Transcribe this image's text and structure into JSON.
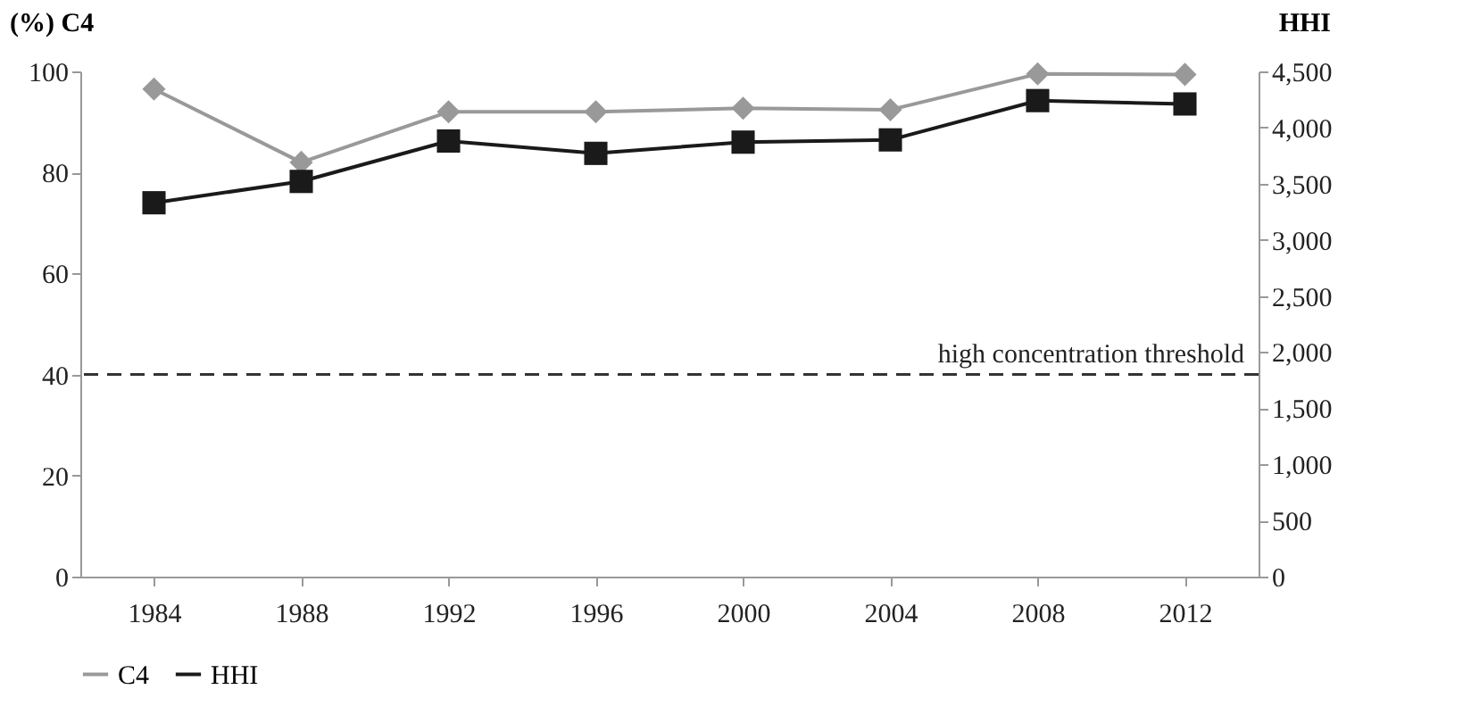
{
  "chart_data": {
    "type": "line",
    "ylabel": "(%) C4",
    "y2label": "HHI",
    "categories": [
      "1984",
      "1988",
      "1992",
      "1996",
      "2000",
      "2004",
      "2008",
      "2012"
    ],
    "series": [
      {
        "name": "C4",
        "color": "#999999",
        "marker": "diamond",
        "values": [
          96.5,
          82,
          92,
          92,
          92.7,
          92.4,
          99.5,
          99.4
        ]
      },
      {
        "name": "HHI",
        "color": "#1a1a1a",
        "marker": "square",
        "axis": "y2",
        "values": [
          3330,
          3520,
          3880,
          3770,
          3870,
          3890,
          4240,
          4210
        ]
      }
    ],
    "ylim": [
      0,
      100
    ],
    "yticks": [
      0,
      20,
      40,
      60,
      80,
      100
    ],
    "y2lim": [
      0,
      4500
    ],
    "y2ticks": [
      {
        "value": 0,
        "label": "0"
      },
      {
        "value": 500,
        "label": "500"
      },
      {
        "value": 1000,
        "label": "1,000"
      },
      {
        "value": 1500,
        "label": "1,500"
      },
      {
        "value": 2000,
        "label": "2,000"
      },
      {
        "value": 2500,
        "label": "2,500"
      },
      {
        "value": 3000,
        "label": "3,000"
      },
      {
        "value": 3500,
        "label": "3,500"
      },
      {
        "value": 4000,
        "label": "4,000"
      },
      {
        "value": 4500,
        "label": "4,500"
      }
    ],
    "ref_lines": [
      {
        "axis": "y",
        "value": 40,
        "label": "high concentration threshold",
        "color": "#333333",
        "line_style": "dashed"
      }
    ],
    "grid": false,
    "legend": "bottom",
    "line_style": "solid"
  }
}
